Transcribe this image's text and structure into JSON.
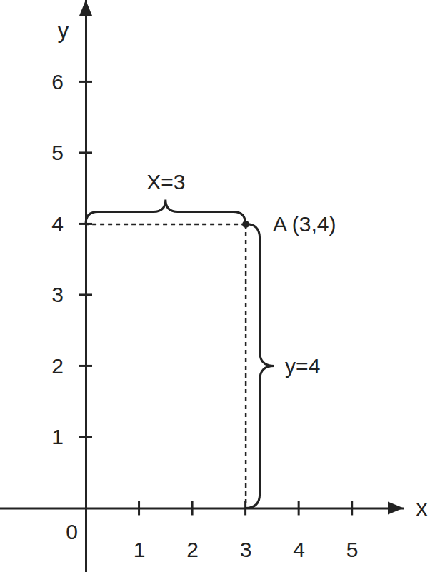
{
  "chart_data": {
    "type": "scatter",
    "x_label": "x",
    "y_label": "y",
    "xlim": [
      -1.61,
      5.97
    ],
    "ylim": [
      -0.9,
      7.15
    ],
    "xticks": [
      1,
      2,
      3,
      4,
      5
    ],
    "yticks": [
      1,
      2,
      3,
      4,
      5,
      6
    ],
    "grid": false,
    "color": "#222222",
    "points": [
      {
        "x": 3,
        "y": 4,
        "label": "A (3,4)"
      }
    ],
    "annotations": [
      {
        "text": "X=3",
        "from": [
          0,
          4
        ],
        "to": [
          3,
          4
        ]
      },
      {
        "text": "y=4",
        "from": [
          3,
          0
        ],
        "to": [
          3,
          4
        ]
      },
      {
        "text": "0",
        "x": 0,
        "y": 0
      }
    ]
  }
}
